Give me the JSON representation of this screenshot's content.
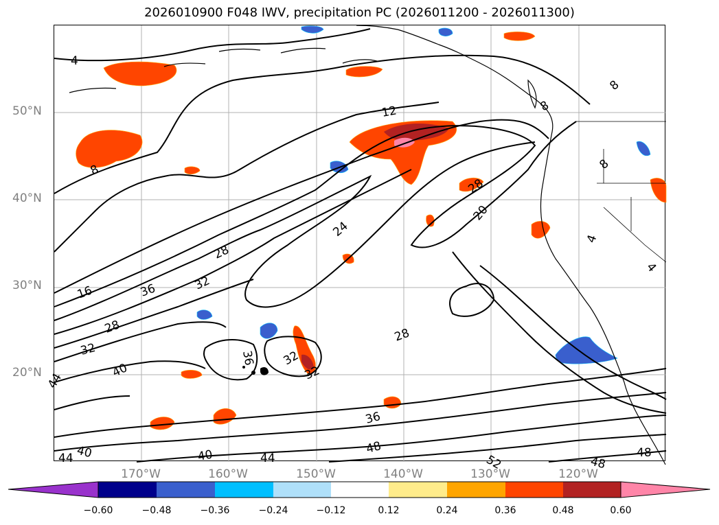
{
  "title": "2026010900 F048 IWV, precipitation PC (2026011200 - 2026011300)",
  "lat_labels": [
    "50°N",
    "40°N",
    "30°N",
    "20°N"
  ],
  "lon_labels": [
    "170°W",
    "160°W",
    "150°W",
    "140°W",
    "130°W",
    "120°W"
  ],
  "colorbar": {
    "ticks": [
      "−0.60",
      "−0.48",
      "−0.36",
      "−0.24",
      "−0.12",
      "0.12",
      "0.24",
      "0.36",
      "0.48",
      "0.60"
    ],
    "colors": [
      "#9932cc",
      "#00008b",
      "#3a5fcd",
      "#00bfff",
      "#afe0fa",
      "#ffffff",
      "#ffec8b",
      "#ffa500",
      "#ff4500",
      "#b22222",
      "#ff85a8"
    ]
  },
  "contour_labels": [
    "4",
    "8",
    "8",
    "8",
    "8",
    "12",
    "16",
    "20",
    "24",
    "28",
    "28",
    "28",
    "28",
    "32",
    "32",
    "32",
    "32",
    "36",
    "36",
    "36",
    "40",
    "40",
    "40",
    "44",
    "44",
    "44",
    "48",
    "48",
    "48",
    "4",
    "4",
    "52"
  ],
  "colors": {
    "land": "#000000",
    "contour": "#000000",
    "grid": "#b0b0b0"
  }
}
